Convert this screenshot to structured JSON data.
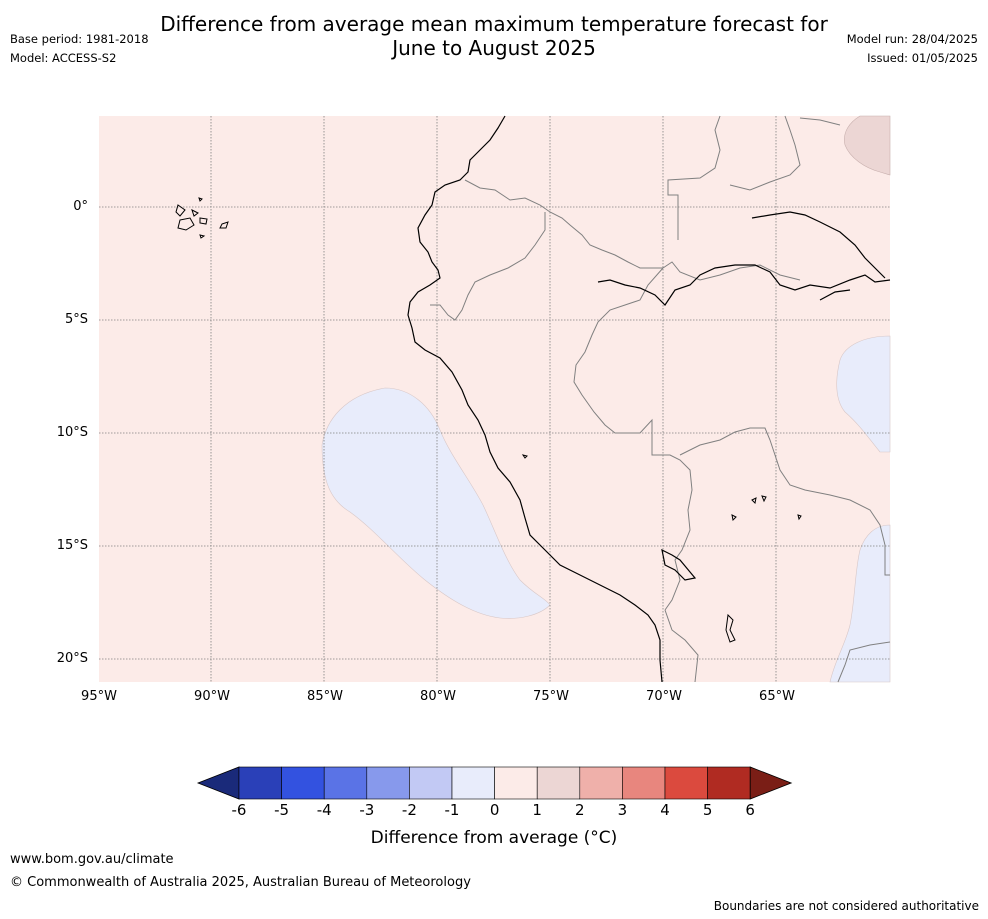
{
  "header": {
    "title_line1": "Difference from average mean maximum temperature forecast for",
    "title_line2": "June to August 2025",
    "base_period": "Base period: 1981-2018",
    "model": "Model: ACCESS-S2",
    "model_run": "Model run: 28/04/2025",
    "issued": "Issued: 01/05/2025"
  },
  "map": {
    "y_ticks": [
      "0°",
      "5°S",
      "10°S",
      "15°S",
      "20°S"
    ],
    "x_ticks": [
      "95°W",
      "90°W",
      "85°W",
      "80°W",
      "75°W",
      "70°W",
      "65°W"
    ],
    "colors": {
      "background_anomaly": "#fcebe8",
      "cool_anomaly": "#e8ecfb",
      "warm_anomaly": "#ecd6d4",
      "coastline": "#000000",
      "borders": "#808080"
    }
  },
  "colorbar": {
    "tick_labels": [
      "-6",
      "-5",
      "-4",
      "-3",
      "-2",
      "-1",
      "0",
      "1",
      "2",
      "3",
      "4",
      "5",
      "6"
    ],
    "colors": [
      "#1a2a7a",
      "#2a40b8",
      "#3352e0",
      "#5a73e6",
      "#8799ec",
      "#c2c9f4",
      "#e8ecfb",
      "#fcebe8",
      "#ecd6d4",
      "#efb0aa",
      "#e8867e",
      "#db4a3e",
      "#b02b22",
      "#7a1e16"
    ],
    "label": "Difference from average (°C)"
  },
  "footer": {
    "url": "www.bom.gov.au/climate",
    "copyright": "© Commonwealth of Australia 2025, Australian Bureau of Meteorology",
    "disclaimer": "Boundaries are not considered authoritative"
  }
}
